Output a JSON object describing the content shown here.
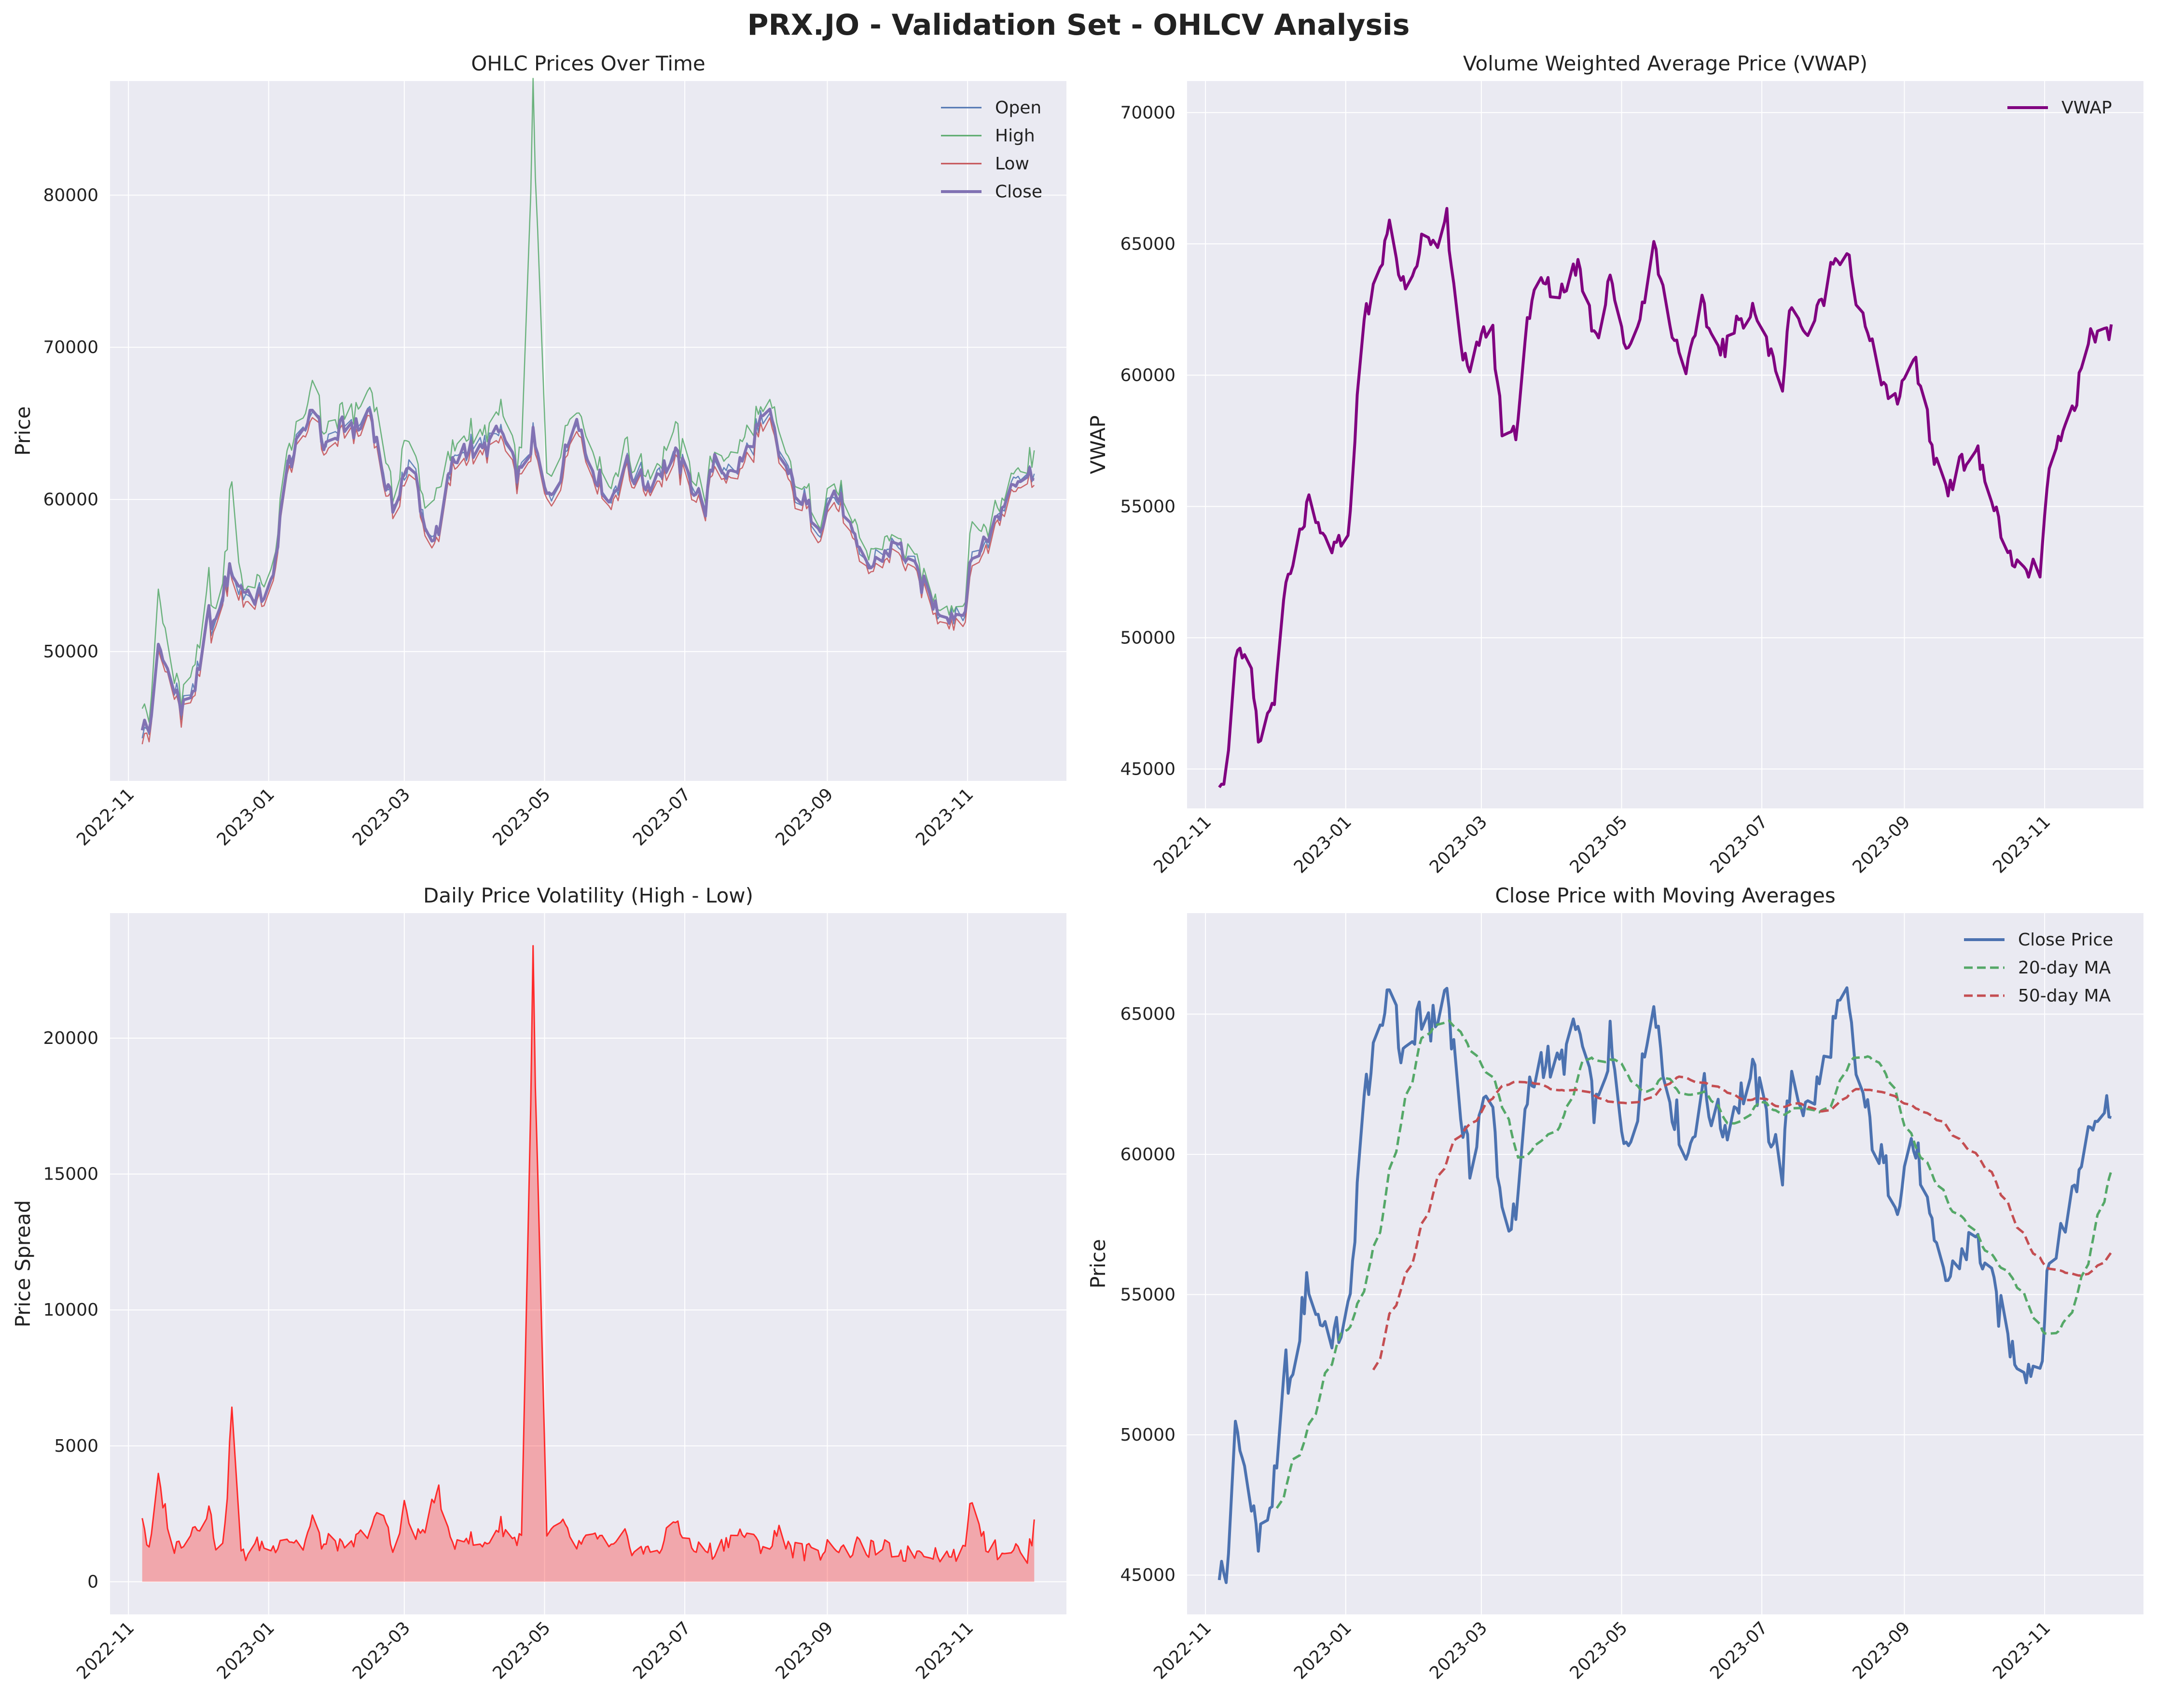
{
  "figure": {
    "title": "PRX.JO - Validation Set - OHLCV Analysis"
  },
  "colors": {
    "axes_bg": "#eaeaf2",
    "grid": "#ffffff",
    "open": "#4c72b0",
    "high": "#55a868",
    "low": "#c44e52",
    "close": "#8172b3",
    "vwap": "#800080",
    "spread": "#ff2a2a",
    "close_price": "#4c72b0",
    "ma20": "#55a868",
    "ma50": "#c44e52"
  },
  "chart_data": [
    {
      "id": "ohlc",
      "type": "line",
      "title": "OHLC Prices Over Time",
      "ylabel": "Price",
      "xlabel": "",
      "x_ticks": [
        "2022-11",
        "2023-01",
        "2023-03",
        "2023-05",
        "2023-07",
        "2023-09",
        "2023-11"
      ],
      "y_ticks": [
        50000,
        60000,
        70000,
        80000
      ],
      "ylim": [
        41500,
        87500
      ],
      "legend": {
        "position": "top-right",
        "entries": [
          "Open",
          "High",
          "Low",
          "Close"
        ]
      },
      "grid": true,
      "series": [
        {
          "name": "Open",
          "values": []
        },
        {
          "name": "High",
          "values": []
        },
        {
          "name": "Low",
          "values": []
        },
        {
          "name": "Close",
          "values": []
        }
      ]
    },
    {
      "id": "vwap",
      "type": "line",
      "title": "Volume Weighted Average Price (VWAP)",
      "ylabel": "VWAP",
      "xlabel": "",
      "x_ticks": [
        "2022-11",
        "2023-01",
        "2023-03",
        "2023-05",
        "2023-07",
        "2023-09",
        "2023-11"
      ],
      "y_ticks": [
        45000,
        50000,
        55000,
        60000,
        65000,
        70000
      ],
      "ylim": [
        43500,
        71200
      ],
      "legend": {
        "position": "top-right",
        "entries": [
          "VWAP"
        ]
      },
      "grid": true,
      "series": [
        {
          "name": "VWAP",
          "values": []
        }
      ]
    },
    {
      "id": "volatility",
      "type": "area",
      "title": "Daily Price Volatility (High - Low)",
      "ylabel": "Price Spread",
      "xlabel": "",
      "x_ticks": [
        "2022-11",
        "2023-01",
        "2023-03",
        "2023-05",
        "2023-07",
        "2023-09",
        "2023-11"
      ],
      "y_ticks": [
        0,
        5000,
        10000,
        15000,
        20000
      ],
      "ylim": [
        -1200,
        24600
      ],
      "grid": true,
      "series": [
        {
          "values": []
        }
      ]
    },
    {
      "id": "ma",
      "type": "line",
      "title": "Close Price with Moving Averages",
      "ylabel": "Price",
      "xlabel": "",
      "x_ticks": [
        "2022-11",
        "2023-01",
        "2023-03",
        "2023-05",
        "2023-07",
        "2023-09",
        "2023-11"
      ],
      "y_ticks": [
        45000,
        50000,
        55000,
        60000,
        65000
      ],
      "ylim": [
        43600,
        68600
      ],
      "legend": {
        "position": "top-right",
        "entries": [
          "Close Price",
          "20-day MA",
          "50-day MA"
        ]
      },
      "grid": true,
      "series": [
        {
          "name": "Close Price",
          "values": []
        },
        {
          "name": "20-day MA",
          "values": []
        },
        {
          "name": "50-day MA",
          "values": []
        }
      ]
    }
  ],
  "anchors": {
    "dates": [
      "2022-11-07",
      "2022-11-10",
      "2022-11-14",
      "2022-11-21",
      "2022-11-24",
      "2022-11-29",
      "2022-12-02",
      "2022-12-06",
      "2022-12-09",
      "2022-12-13",
      "2022-12-16",
      "2022-12-20",
      "2022-12-28",
      "2023-01-03",
      "2023-01-06",
      "2023-01-10",
      "2023-01-16",
      "2023-01-20",
      "2023-01-25",
      "2023-01-30",
      "2023-02-03",
      "2023-02-09",
      "2023-02-14",
      "2023-02-20",
      "2023-02-24",
      "2023-03-01",
      "2023-03-06",
      "2023-03-10",
      "2023-03-16",
      "2023-03-21",
      "2023-03-27",
      "2023-04-03",
      "2023-04-12",
      "2023-04-18",
      "2023-04-21",
      "2023-04-26",
      "2023-05-02",
      "2023-05-08",
      "2023-05-15",
      "2023-05-19",
      "2023-05-24",
      "2023-05-30",
      "2023-06-05",
      "2023-06-09",
      "2023-06-15",
      "2023-06-21",
      "2023-06-27",
      "2023-07-04",
      "2023-07-10",
      "2023-07-14",
      "2023-07-20",
      "2023-07-26",
      "2023-08-01",
      "2023-08-07",
      "2023-08-11",
      "2023-08-17",
      "2023-08-23",
      "2023-08-29",
      "2023-09-04",
      "2023-09-08",
      "2023-09-14",
      "2023-09-20",
      "2023-09-26",
      "2023-10-02",
      "2023-10-06",
      "2023-10-12",
      "2023-10-18",
      "2023-10-24",
      "2023-10-30",
      "2023-11-03",
      "2023-11-09",
      "2023-11-15",
      "2023-11-21",
      "2023-11-27",
      "2023-11-30"
    ],
    "close": [
      45300,
      44800,
      50000,
      48000,
      46000,
      47500,
      48500,
      52500,
      51500,
      54500,
      55500,
      54200,
      53500,
      54500,
      59000,
      62500,
      64000,
      66500,
      63500,
      64000,
      65000,
      64500,
      66000,
      61500,
      59500,
      61800,
      61500,
      58000,
      57500,
      62000,
      63500,
      63000,
      64500,
      62000,
      61500,
      64000,
      60000,
      61800,
      66000,
      63000,
      61500,
      60000,
      62500,
      61500,
      61000,
      62000,
      62800,
      61000,
      59500,
      63000,
      61500,
      62500,
      64500,
      65500,
      63000,
      61000,
      59500,
      58500,
      60500,
      59500,
      56500,
      55500,
      56500,
      57000,
      56000,
      54500,
      53000,
      52500,
      52500,
      56000,
      57500,
      59000,
      61500,
      61500,
      62000
    ],
    "vwap": [
      44700,
      44800,
      49500,
      48500,
      46000,
      47200,
      48200,
      52000,
      52500,
      54300,
      55000,
      54000,
      53300,
      54500,
      59500,
      62500,
      63800,
      66000,
      63500,
      64000,
      65200,
      64600,
      66000,
      61200,
      59700,
      61800,
      61500,
      58000,
      57800,
      62200,
      63600,
      63000,
      64300,
      62000,
      61600,
      64000,
      61000,
      61800,
      65000,
      63200,
      61400,
      60300,
      62600,
      61500,
      61000,
      62000,
      62700,
      60900,
      59700,
      63000,
      61500,
      62500,
      64300,
      65000,
      62900,
      61200,
      59700,
      58700,
      60800,
      59700,
      56800,
      55800,
      56600,
      57200,
      56000,
      54500,
      52600,
      52500,
      52600,
      56300,
      57700,
      59300,
      61500,
      61600,
      61700
    ],
    "spread": [
      2500,
      1000,
      3700,
      1200,
      1500,
      2000,
      2200,
      2700,
      1400,
      1800,
      6500,
      900,
      1400,
      1200,
      1700,
      1600,
      1300,
      2200,
      1300,
      1600,
      1000,
      1600,
      2000,
      2500,
      1100,
      2800,
      1500,
      2100,
      3400,
      1300,
      1800,
      1200,
      2100,
      1500,
      1800,
      21500,
      1600,
      2100,
      1300,
      1400,
      1700,
      1100,
      1600,
      1200,
      1100,
      1300,
      2300,
      1200,
      1200,
      1100,
      1600,
      1800,
      1400,
      1300,
      1900,
      1200,
      1100,
      1100,
      1500,
      1000,
      1300,
      1200,
      1200,
      1100,
      1000,
      1200,
      1100,
      900,
      1000,
      3200,
      1400,
      1100,
      1300,
      800,
      2100
    ]
  }
}
